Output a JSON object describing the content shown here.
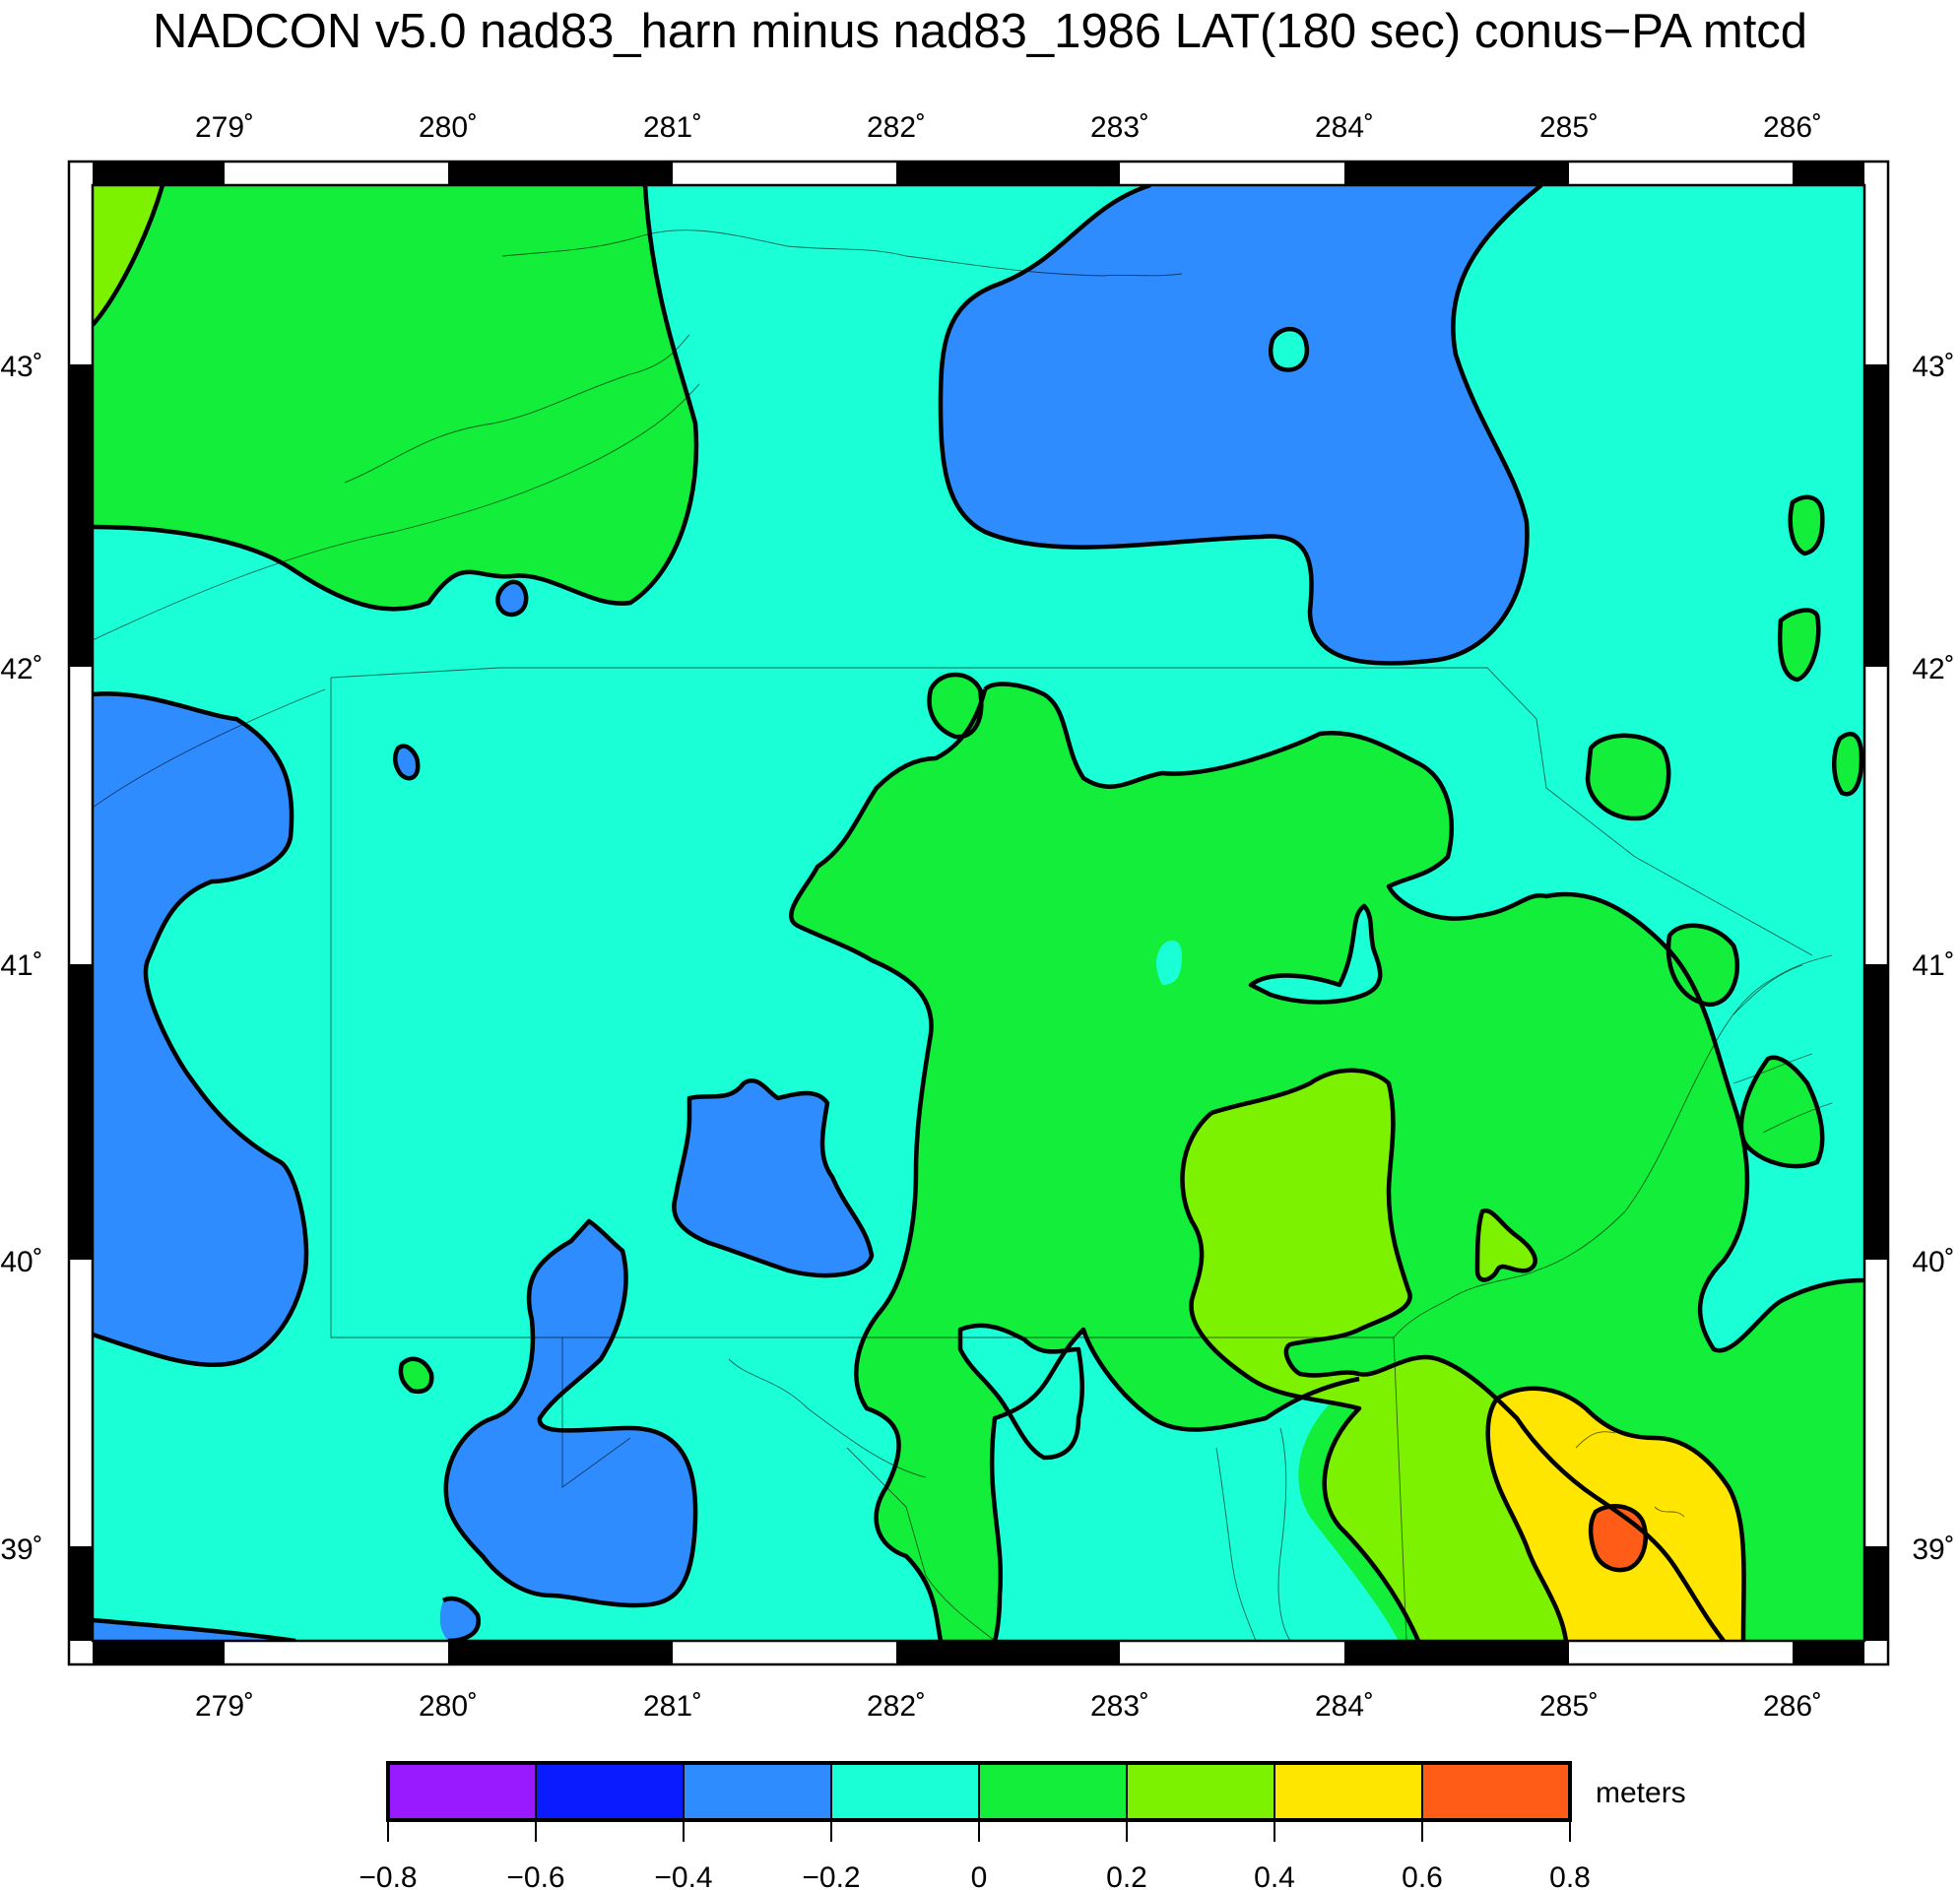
{
  "title": "NADCON v5.0 nad83_harn minus nad83_1986 LAT(180 sec) conus−PA mtcd",
  "map": {
    "lon_labels": [
      "279˚",
      "280˚",
      "281˚",
      "282˚",
      "283˚",
      "284˚",
      "285˚",
      "286˚"
    ],
    "lat_labels": [
      "43˚",
      "42˚",
      "41˚",
      "40˚",
      "39˚"
    ]
  },
  "colorbar": {
    "unit": "meters",
    "tick_labels": [
      "−0.8",
      "−0.6",
      "−0.4",
      "−0.2",
      "0",
      "0.2",
      "0.4",
      "0.6",
      "0.8"
    ],
    "colors": [
      "#9a1aff",
      "#0a1cff",
      "#2f8cff",
      "#1bffd6",
      "#12ee3a",
      "#7cf200",
      "#ffe600",
      "#ff5c18"
    ]
  }
}
